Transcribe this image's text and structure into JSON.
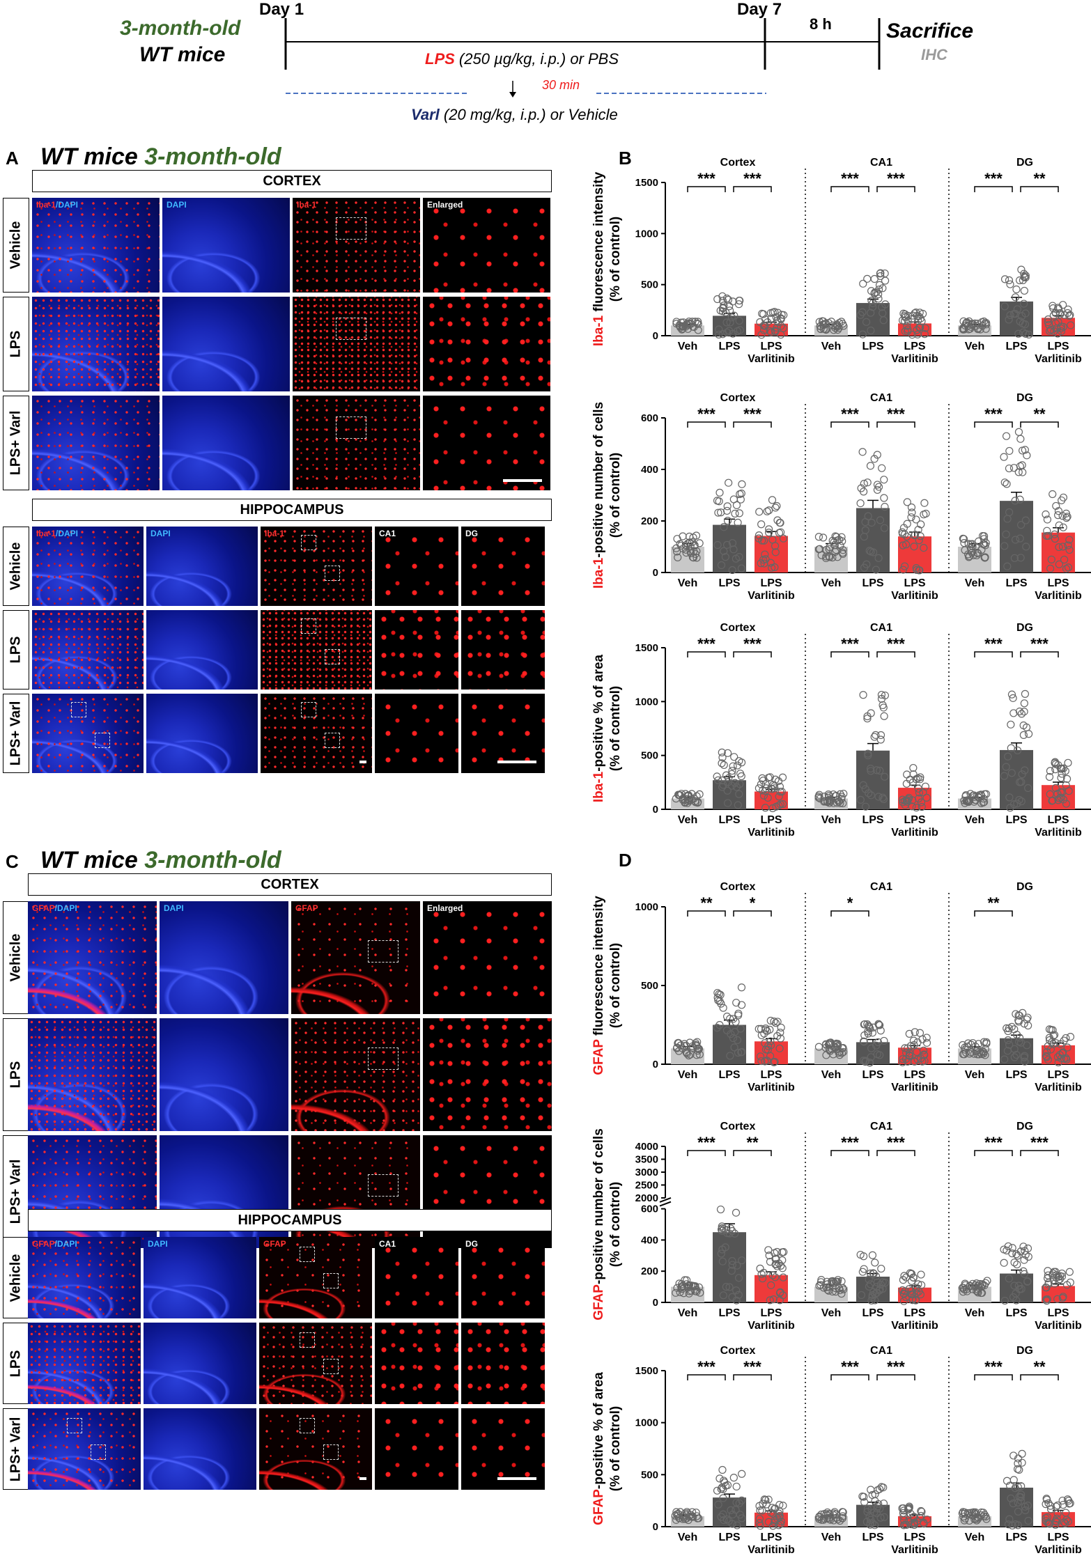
{
  "colors": {
    "green": "#3c6a2c",
    "red": "#ee1c1c",
    "navy": "#1c2c6c",
    "gray_text": "#9a9a9a",
    "blue_dash": "#4a72c0",
    "veh_bar": "#c8c8c8",
    "lps_bar": "#555555",
    "varl_bar": "#ee3a3a"
  },
  "timeline": {
    "age": "3-month-old",
    "strain": "WT mice",
    "day1": "Day 1",
    "day7": "Day 7",
    "hours": "8 h",
    "sacrifice": "Sacrifice",
    "ihc": "IHC",
    "lps_word": "LPS",
    "lps_rest": "(250 µg/kg, i.p.) or PBS",
    "interval": "30 min",
    "varl_word": "Varl",
    "varl_rest": "(20 mg/kg, i.p.) or Vehicle"
  },
  "panelA": {
    "letter": "A",
    "title_a": "WT mice",
    "title_b": "3-month-old",
    "cortex_label": "CORTEX",
    "hippo_label": "HIPPOCAMPUS",
    "rows": [
      "Vehicle",
      "LPS",
      "LPS+ Varl"
    ],
    "cortex_cols": [
      "Iba-1/DAPI",
      "DAPI",
      "Iba-1",
      "Enlarged"
    ],
    "hippo_cols": [
      "Iba-1/DAPI",
      "DAPI",
      "Iba-1",
      "CA1",
      "DG"
    ]
  },
  "panelC": {
    "letter": "C",
    "title_a": "WT mice",
    "title_b": "3-month-old",
    "cortex_label": "CORTEX",
    "hippo_label": "HIPPOCAMPUS",
    "rows": [
      "Vehicle",
      "LPS",
      "LPS+ Varl"
    ],
    "cortex_cols": [
      "GFAP/DAPI",
      "DAPI",
      "GFAP",
      "Enlarged"
    ],
    "hippo_cols": [
      "GFAP/DAPI",
      "DAPI",
      "GFAP",
      "CA1",
      "DG"
    ]
  },
  "panelB": {
    "letter": "B"
  },
  "panelD": {
    "letter": "D"
  },
  "chart_data": [
    {
      "type": "bar",
      "panel": "B",
      "ylabel_marker": "Iba-1",
      "ylabel_rest": "fluorescence intensity",
      "ylabel_sub": "(% of control)",
      "regions": [
        "Cortex",
        "CA1",
        "DG"
      ],
      "groups": [
        "Veh",
        "LPS",
        "LPS Varlitinib"
      ],
      "ylim": [
        0,
        1500
      ],
      "yticks": [
        0,
        500,
        1000,
        1500
      ],
      "series": [
        {
          "region": "Cortex",
          "values": [
            100,
            195,
            118
          ]
        },
        {
          "region": "CA1",
          "values": [
            100,
            320,
            120
          ]
        },
        {
          "region": "DG",
          "values": [
            100,
            335,
            175
          ]
        }
      ],
      "significance": [
        [
          "***",
          "***"
        ],
        [
          "***",
          "***"
        ],
        [
          "***",
          "**"
        ]
      ]
    },
    {
      "type": "bar",
      "panel": "B",
      "ylabel_marker": "Iba-1",
      "ylabel_rest": "-positive number of cells",
      "ylabel_sub": "(% of control)",
      "regions": [
        "Cortex",
        "CA1",
        "DG"
      ],
      "groups": [
        "Veh",
        "LPS",
        "LPS Varlitinib"
      ],
      "ylim": [
        0,
        600
      ],
      "yticks": [
        0,
        200,
        400,
        600
      ],
      "series": [
        {
          "region": "Cortex",
          "values": [
            100,
            185,
            142
          ]
        },
        {
          "region": "CA1",
          "values": [
            100,
            250,
            140
          ]
        },
        {
          "region": "DG",
          "values": [
            100,
            278,
            155
          ]
        }
      ],
      "significance": [
        [
          "***",
          "***"
        ],
        [
          "***",
          "***"
        ],
        [
          "***",
          "**"
        ]
      ]
    },
    {
      "type": "bar",
      "panel": "B",
      "ylabel_marker": "Iba-1",
      "ylabel_rest": "-positive % of area",
      "ylabel_sub": "(% of control)",
      "regions": [
        "Cortex",
        "CA1",
        "DG"
      ],
      "groups": [
        "Veh",
        "LPS",
        "LPS Varlitinib"
      ],
      "ylim": [
        0,
        1500
      ],
      "yticks": [
        0,
        500,
        1000,
        1500
      ],
      "series": [
        {
          "region": "Cortex",
          "values": [
            100,
            270,
            165
          ]
        },
        {
          "region": "CA1",
          "values": [
            100,
            545,
            200
          ]
        },
        {
          "region": "DG",
          "values": [
            100,
            550,
            225
          ]
        }
      ],
      "significance": [
        [
          "***",
          "***"
        ],
        [
          "***",
          "***"
        ],
        [
          "***",
          "***"
        ]
      ]
    },
    {
      "type": "bar",
      "panel": "D",
      "ylabel_marker": "GFAP",
      "ylabel_rest": "fluorescence intensity",
      "ylabel_sub": "(% of control)",
      "regions": [
        "Cortex",
        "CA1",
        "DG"
      ],
      "groups": [
        "Veh",
        "LPS",
        "LPS Varlitinib"
      ],
      "ylim": [
        0,
        1000
      ],
      "yticks": [
        0,
        500,
        1000
      ],
      "series": [
        {
          "region": "Cortex",
          "values": [
            100,
            250,
            145
          ]
        },
        {
          "region": "CA1",
          "values": [
            100,
            140,
            105
          ]
        },
        {
          "region": "DG",
          "values": [
            100,
            165,
            120
          ]
        }
      ],
      "significance": [
        [
          "**",
          "*"
        ],
        [
          "*",
          ""
        ],
        [
          "**",
          ""
        ]
      ]
    },
    {
      "type": "bar",
      "panel": "D",
      "ylabel_marker": "GFAP",
      "ylabel_rest": "-positive number of cells",
      "ylabel_sub": "(% of control)",
      "regions": [
        "Cortex",
        "CA1",
        "DG"
      ],
      "groups": [
        "Veh",
        "LPS",
        "LPS Varlitinib"
      ],
      "broken_axis": true,
      "yticks_lower": [
        0,
        200,
        400,
        600
      ],
      "yticks_upper": [
        2000,
        2500,
        3000,
        3500,
        4000
      ],
      "series": [
        {
          "region": "Cortex",
          "values": [
            100,
            450,
            175
          ]
        },
        {
          "region": "CA1",
          "values": [
            100,
            165,
            95
          ]
        },
        {
          "region": "DG",
          "values": [
            100,
            185,
            105
          ]
        }
      ],
      "significance": [
        [
          "***",
          "**"
        ],
        [
          "***",
          "***"
        ],
        [
          "***",
          "***"
        ]
      ]
    },
    {
      "type": "bar",
      "panel": "D",
      "ylabel_marker": "GFAP",
      "ylabel_rest": "-positive % of area",
      "ylabel_sub": "(% of control)",
      "regions": [
        "Cortex",
        "CA1",
        "DG"
      ],
      "groups": [
        "Veh",
        "LPS",
        "LPS Varlitinib"
      ],
      "ylim": [
        0,
        1500
      ],
      "yticks": [
        0,
        500,
        1000,
        1500
      ],
      "series": [
        {
          "region": "Cortex",
          "values": [
            100,
            280,
            135
          ]
        },
        {
          "region": "CA1",
          "values": [
            100,
            210,
            100
          ]
        },
        {
          "region": "DG",
          "values": [
            100,
            375,
            140
          ]
        }
      ],
      "significance": [
        [
          "***",
          "***"
        ],
        [
          "***",
          "***"
        ],
        [
          "***",
          "**"
        ]
      ]
    }
  ]
}
